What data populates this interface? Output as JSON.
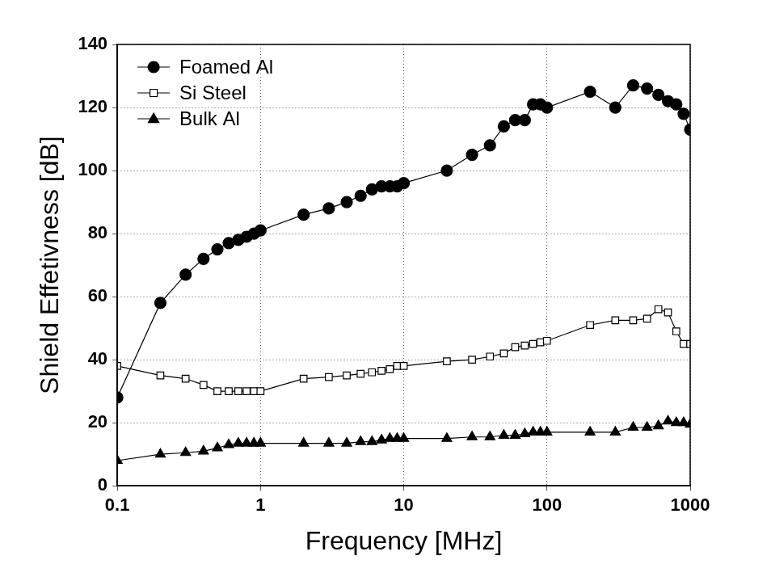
{
  "chart_data": {
    "type": "line",
    "x_label": "Frequency [MHz]",
    "y_label": "Shield Effetivness [dB]",
    "log": "x",
    "grid": true,
    "legend": "upper left",
    "xlim": [
      0.1,
      1000
    ],
    "xticks": [
      0.1,
      1,
      10,
      100,
      1000
    ],
    "ylim": [
      0,
      140
    ],
    "yticks": [
      0,
      20,
      40,
      60,
      80,
      100,
      120,
      140
    ],
    "x": [
      0.1,
      0.2,
      0.3,
      0.4,
      0.5,
      0.6,
      0.7,
      0.8,
      0.9,
      1,
      2,
      3,
      4,
      5,
      6,
      7,
      8,
      9,
      10,
      20,
      30,
      40,
      50,
      60,
      70,
      80,
      90,
      100,
      200,
      300,
      400,
      500,
      600,
      700,
      800,
      900,
      1000
    ],
    "series": [
      {
        "name": "Foamed Al",
        "color": "#000000",
        "marker": "circle",
        "line_style": "solid",
        "values": [
          28,
          58,
          67,
          72,
          75,
          77,
          78,
          79,
          80,
          81,
          86,
          88,
          90,
          92,
          94,
          95,
          95,
          95,
          96,
          100,
          105,
          108,
          114,
          116,
          116,
          121,
          121,
          120,
          125,
          120,
          127,
          126,
          124,
          122,
          121,
          118,
          113
        ]
      },
      {
        "name": "Si Steel",
        "color": "#000000",
        "marker": "open_square",
        "line_style": "solid",
        "values": [
          38,
          35,
          34,
          32,
          30,
          30,
          30,
          30,
          30,
          30,
          34,
          34.5,
          35,
          35.5,
          36,
          36.5,
          37,
          38,
          38,
          39.5,
          40,
          41,
          42,
          44,
          44.5,
          45,
          45.5,
          46,
          51,
          52.5,
          52.5,
          53,
          56,
          55,
          49,
          45,
          45
        ]
      },
      {
        "name": "Bulk Al",
        "color": "#000000",
        "marker": "triangle",
        "line_style": "solid",
        "values": [
          8,
          10,
          10.5,
          11,
          12,
          13,
          13.5,
          13.5,
          13.5,
          13.5,
          13.5,
          13.5,
          13.5,
          14,
          14,
          14.5,
          15,
          15,
          15,
          15,
          15.5,
          15.5,
          16,
          16,
          16.5,
          17,
          17,
          17,
          17,
          17,
          18.5,
          18.5,
          19,
          20.5,
          20,
          20,
          19.5
        ]
      }
    ]
  }
}
